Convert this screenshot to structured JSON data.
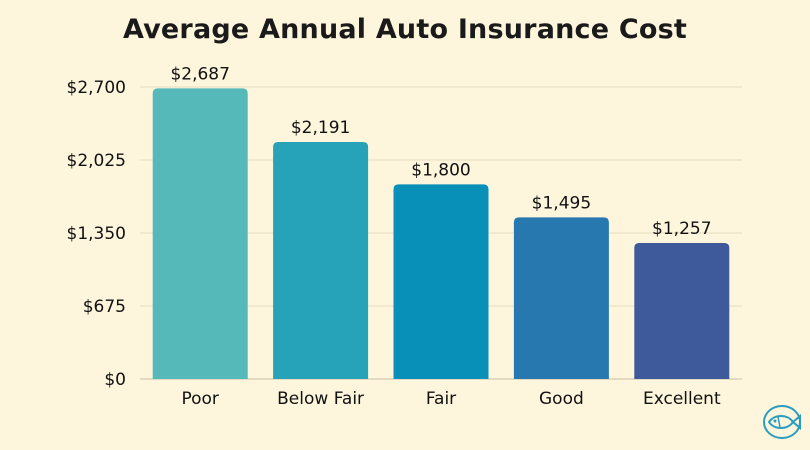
{
  "chart_data": {
    "type": "bar",
    "title": "Average Annual Auto Insurance Cost",
    "categories": [
      "Poor",
      "Below Fair",
      "Fair",
      "Good",
      "Excellent"
    ],
    "values": [
      2687,
      2191,
      1800,
      1495,
      1257
    ],
    "value_labels": [
      "$2,687",
      "$2,191",
      "$1,800",
      "$1,495",
      "$1,257"
    ],
    "yticks": [
      0,
      675,
      1350,
      2025,
      2700
    ],
    "ytick_labels": [
      "$0",
      "$675",
      "$1,350",
      "$2,025",
      "$2,700"
    ],
    "ylim": [
      0,
      2700
    ],
    "grid": true,
    "bar_colors": [
      "#55b9b9",
      "#27a3b9",
      "#0890b9",
      "#2878b0",
      "#3e5a9a"
    ],
    "grid_color": "#e6dcc0",
    "axis_color": "#c9bfa6"
  },
  "logo": {
    "icon": "fish-logo-icon",
    "color": "#2a9dbf"
  }
}
